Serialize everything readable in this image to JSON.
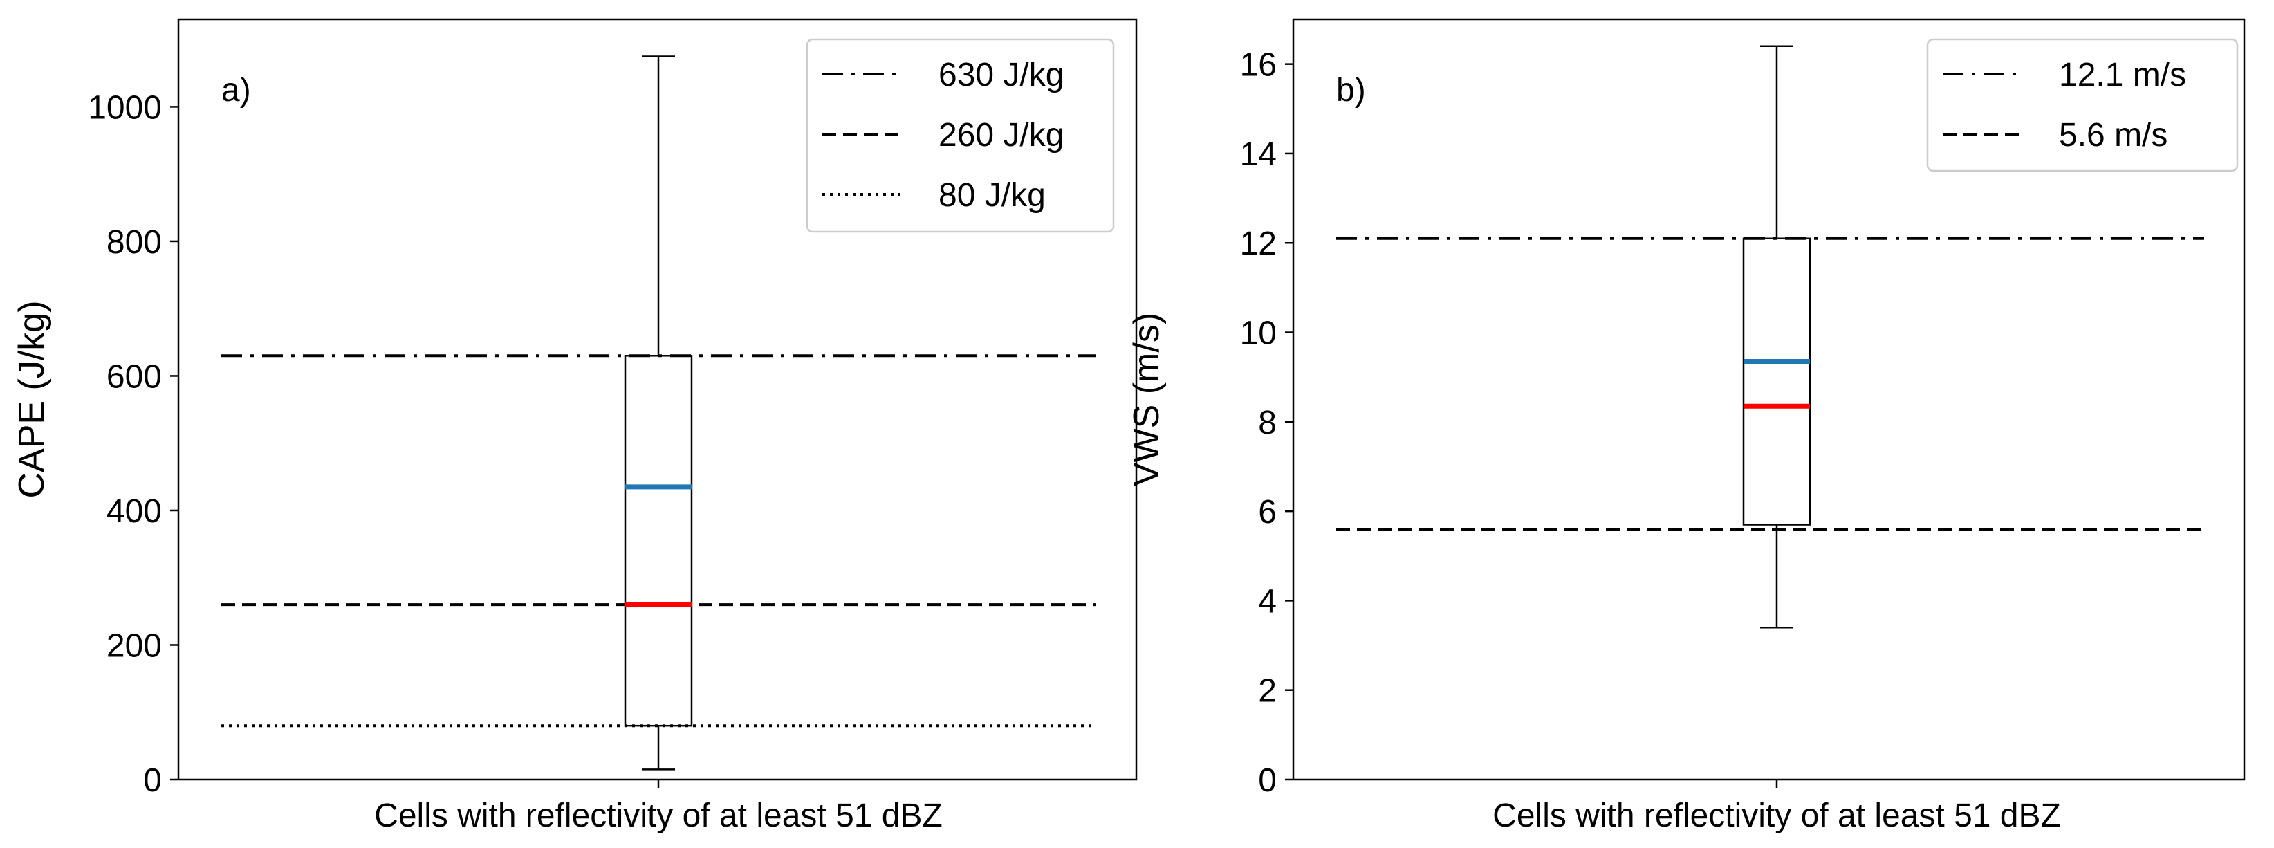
{
  "chart_data": [
    {
      "type": "box",
      "panel_label": "a)",
      "ylabel": "CAPE (J/kg)",
      "category": "Cells with reflectivity of at least 51 dBZ",
      "ylim": [
        0,
        1130
      ],
      "yticks": [
        0,
        200,
        400,
        600,
        800,
        1000
      ],
      "box": {
        "whisker_low": 15,
        "q1": 80,
        "median": 260,
        "mean": 435,
        "q3": 630,
        "whisker_high": 1075
      },
      "reference_lines": [
        {
          "value": 630,
          "style": "dashdot",
          "label": "630 J/kg"
        },
        {
          "value": 260,
          "style": "dashed",
          "label": "260 J/kg"
        },
        {
          "value": 80,
          "style": "dotted",
          "label": "80 J/kg"
        }
      ],
      "median_color": "#ff0000",
      "mean_color": "#1f77b4",
      "legend_position": "top-right"
    },
    {
      "type": "box",
      "panel_label": "b)",
      "ylabel": "VWS (m/s)",
      "category": "Cells with reflectivity of at least 51 dBZ",
      "ylim": [
        0,
        17
      ],
      "yticks": [
        0,
        2,
        4,
        6,
        8,
        10,
        12,
        14,
        16
      ],
      "box": {
        "whisker_low": 3.4,
        "q1": 5.7,
        "median": 8.35,
        "mean": 9.35,
        "q3": 12.1,
        "whisker_high": 16.4
      },
      "reference_lines": [
        {
          "value": 12.1,
          "style": "dashdot",
          "label": "12.1 m/s"
        },
        {
          "value": 5.6,
          "style": "dashed",
          "label": "5.6 m/s"
        }
      ],
      "median_color": "#ff0000",
      "mean_color": "#1f77b4",
      "legend_position": "top-right"
    }
  ]
}
